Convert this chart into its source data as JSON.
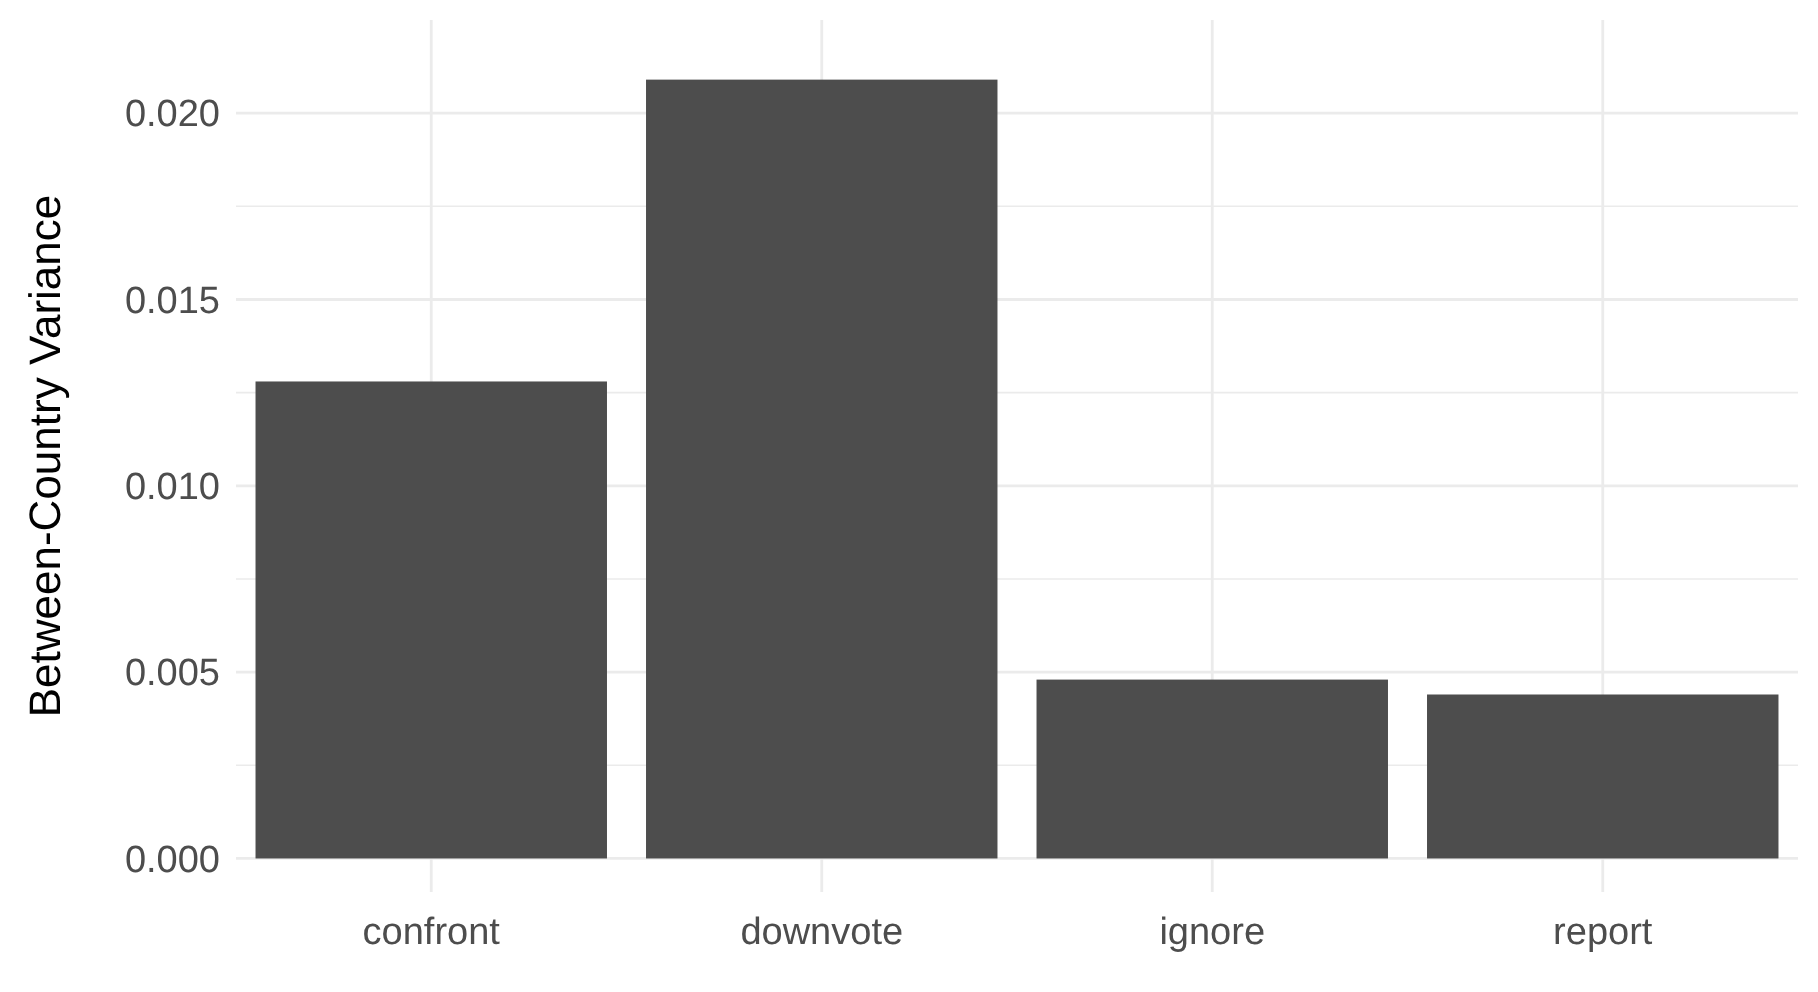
{
  "chart_data": {
    "type": "bar",
    "ylabel": "Between-Country Variance",
    "categories": [
      "confront",
      "downvote",
      "ignore",
      "report"
    ],
    "values": [
      0.0128,
      0.0209,
      0.0048,
      0.0044
    ],
    "color": "#4d4d4d",
    "ylim": [
      -0.0009,
      0.0225
    ],
    "yticks": [
      {
        "value": 0,
        "label": "0.000"
      },
      {
        "value": 0.0025,
        "label": null
      },
      {
        "value": 0.005,
        "label": "0.005"
      },
      {
        "value": 0.0075,
        "label": null
      },
      {
        "value": 0.01,
        "label": "0.010"
      },
      {
        "value": 0.0125,
        "label": null
      },
      {
        "value": 0.015,
        "label": "0.015"
      },
      {
        "value": 0.0175,
        "label": null
      },
      {
        "value": 0.02,
        "label": "0.020"
      }
    ],
    "grid": true
  }
}
